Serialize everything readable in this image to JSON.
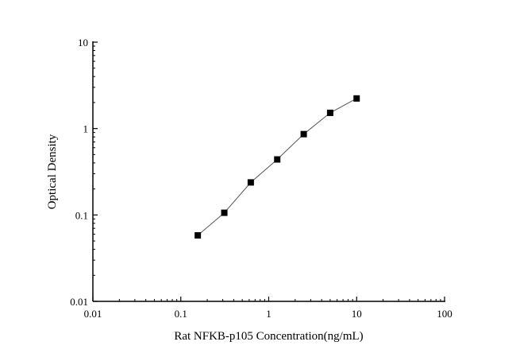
{
  "chart_data": {
    "type": "scatter",
    "title": "",
    "xlabel": "Rat NFKB-p105 Concentration(ng/mL)",
    "ylabel": "Optical Density",
    "xscale": "log",
    "yscale": "log",
    "xlim": [
      0.01,
      100
    ],
    "ylim": [
      0.01,
      10
    ],
    "xticks": [
      "0.01",
      "0.1",
      "1",
      "10",
      "100"
    ],
    "yticks": [
      "0.01",
      "0.1",
      "1",
      "10"
    ],
    "grid": false,
    "line": "connected curve through points",
    "marker": "filled square",
    "colors": {
      "marker": "#000000",
      "line": "#555555"
    },
    "x": [
      0.156,
      0.3125,
      0.625,
      1.25,
      2.5,
      5,
      10
    ],
    "y": [
      0.058,
      0.106,
      0.238,
      0.439,
      0.862,
      1.52,
      2.23
    ]
  }
}
